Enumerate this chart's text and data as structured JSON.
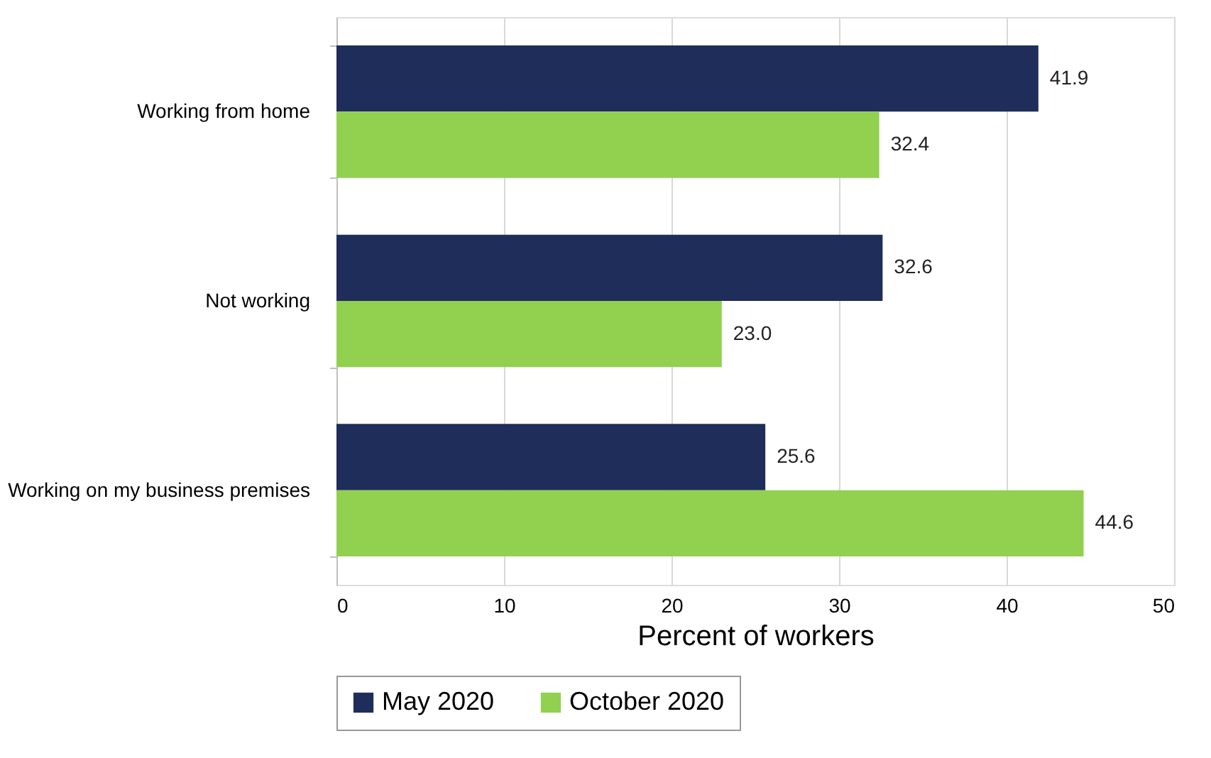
{
  "chart_data": {
    "type": "bar",
    "orientation": "horizontal",
    "xlabel": "Percent of workers",
    "categories": [
      "Working from home",
      "Not working",
      "Working on my business premises"
    ],
    "series": [
      {
        "name": "May 2020",
        "color": "#1f2d5a",
        "values": [
          41.9,
          32.6,
          25.6
        ],
        "value_labels": [
          "41.9",
          "32.6",
          "25.6"
        ]
      },
      {
        "name": "October 2020",
        "color": "#92d050",
        "values": [
          32.4,
          23.0,
          44.6
        ],
        "value_labels": [
          "32.4",
          "23.0",
          "44.6"
        ]
      }
    ],
    "xlim": [
      0,
      50
    ],
    "xticks": [
      0,
      10,
      20,
      30,
      40,
      50
    ],
    "grid": "x",
    "legend": "bottom"
  }
}
